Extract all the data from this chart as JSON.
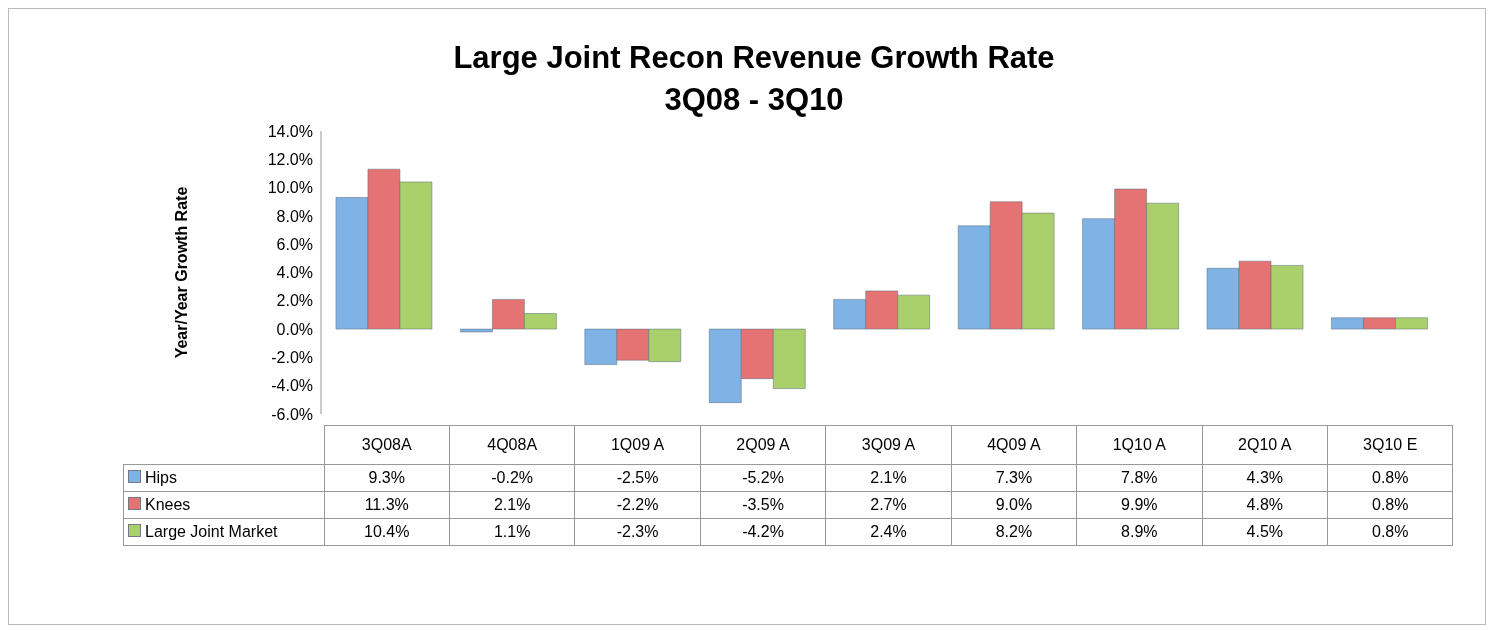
{
  "chart_data": {
    "type": "bar",
    "title": "Large Joint Recon Revenue Growth Rate",
    "subtitle": "3Q08 - 3Q10",
    "ylabel": "Year/Year Growth Rate",
    "categories": [
      "3Q08A",
      "4Q08A",
      "1Q09 A",
      "2Q09 A",
      "3Q09 A",
      "4Q09 A",
      "1Q10 A",
      "2Q10 A",
      "3Q10 E"
    ],
    "series": [
      {
        "name": "Hips",
        "color": "#7fb2e5",
        "values": [
          9.3,
          -0.2,
          -2.5,
          -5.2,
          2.1,
          7.3,
          7.8,
          4.3,
          0.8
        ],
        "value_labels": [
          "9.3%",
          "-0.2%",
          "-2.5%",
          "-5.2%",
          "2.1%",
          "7.3%",
          "7.8%",
          "4.3%",
          "0.8%"
        ]
      },
      {
        "name": "Knees",
        "color": "#e57373",
        "values": [
          11.3,
          2.1,
          -2.2,
          -3.5,
          2.7,
          9.0,
          9.9,
          4.8,
          0.8
        ],
        "value_labels": [
          "11.3%",
          "2.1%",
          "-2.2%",
          "-3.5%",
          "2.7%",
          "9.0%",
          "9.9%",
          "4.8%",
          "0.8%"
        ]
      },
      {
        "name": "Large Joint Market",
        "color": "#a9d06a",
        "values": [
          10.4,
          1.1,
          -2.3,
          -4.2,
          2.4,
          8.2,
          8.9,
          4.5,
          0.8
        ],
        "value_labels": [
          "10.4%",
          "1.1%",
          "-2.3%",
          "-4.2%",
          "2.4%",
          "8.2%",
          "8.9%",
          "4.5%",
          "0.8%"
        ]
      }
    ],
    "ylim": [
      -6,
      14
    ],
    "yticks": [
      {
        "value": -6,
        "label": "-6.0%"
      },
      {
        "value": -4,
        "label": "-4.0%"
      },
      {
        "value": -2,
        "label": "-2.0%"
      },
      {
        "value": 0,
        "label": "0.0%"
      },
      {
        "value": 2,
        "label": "2.0%"
      },
      {
        "value": 4,
        "label": "4.0%"
      },
      {
        "value": 6,
        "label": "6.0%"
      },
      {
        "value": 8,
        "label": "8.0%"
      },
      {
        "value": 10,
        "label": "10.0%"
      },
      {
        "value": 12,
        "label": "12.0%"
      },
      {
        "value": 14,
        "label": "14.0%"
      }
    ],
    "grid": false,
    "legend": "bottom"
  }
}
